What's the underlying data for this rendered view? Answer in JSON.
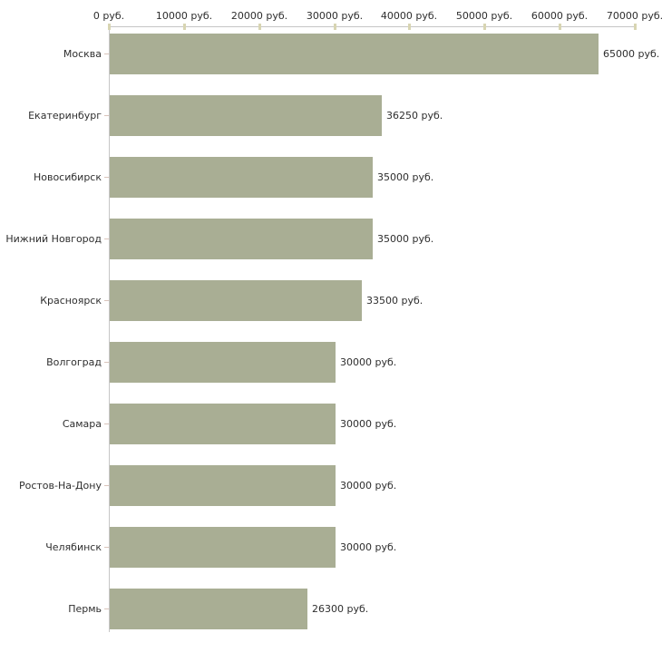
{
  "chart_data": {
    "type": "bar",
    "orientation": "horizontal",
    "categories": [
      "Москва",
      "Екатеринбург",
      "Новосибирск",
      "Нижний Новгород",
      "Красноярск",
      "Волгоград",
      "Самара",
      "Ростов-На-Дону",
      "Челябинск",
      "Пермь"
    ],
    "values": [
      65000,
      36250,
      35000,
      35000,
      33500,
      30000,
      30000,
      30000,
      30000,
      26300
    ],
    "value_labels": [
      "65000 руб.",
      "36250 руб.",
      "35000 руб.",
      "35000 руб.",
      "33500 руб.",
      "30000 руб.",
      "30000 руб.",
      "30000 руб.",
      "30000 руб.",
      "26300 руб."
    ],
    "unit": "руб.",
    "x_axis": {
      "position": "top",
      "range": [
        0,
        70000
      ],
      "tick_values": [
        0,
        10000,
        20000,
        30000,
        40000,
        50000,
        60000,
        70000
      ],
      "tick_labels": [
        "0 руб.",
        "10000 руб.",
        "20000 руб.",
        "30000 руб.",
        "40000 руб.",
        "50000 руб.",
        "60000 руб.",
        "70000 руб."
      ]
    },
    "grid": false,
    "legend": false,
    "colors": {
      "bar": "#a9ae94",
      "axis_line": "#c6c6c6",
      "x_tick": "#d8d5b2",
      "category_tick": "#d9c4ba",
      "text": "#2e2e2e",
      "background": "#ffffff"
    }
  }
}
